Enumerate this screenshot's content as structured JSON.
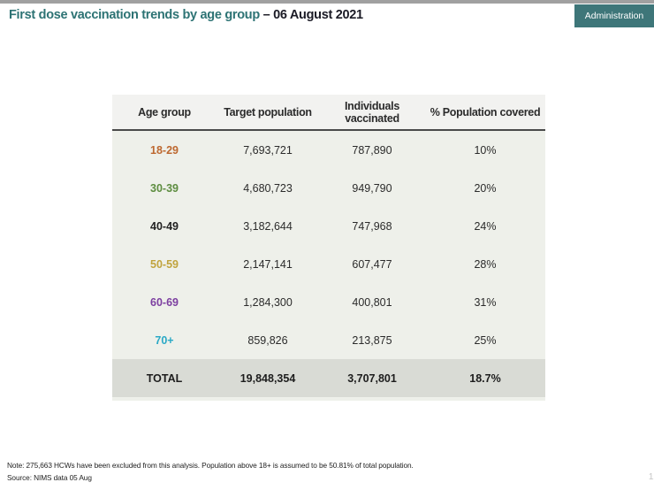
{
  "header": {
    "title_main": "First dose vaccination trends by age group",
    "title_date": " – 06 August 2021",
    "badge_label": "Administration"
  },
  "table": {
    "columns": [
      "Age group",
      "Target population",
      "Individuals vaccinated",
      "% Population covered"
    ],
    "rows": [
      {
        "age_group": "18-29",
        "color": "#bd6830",
        "target_population": "7,693,721",
        "individuals_vaccinated": "787,890",
        "pct_covered": "10%"
      },
      {
        "age_group": "30-39",
        "color": "#5d8d40",
        "target_population": "4,680,723",
        "individuals_vaccinated": "949,790",
        "pct_covered": "20%"
      },
      {
        "age_group": "40-49",
        "color": "#212121",
        "target_population": "3,182,644",
        "individuals_vaccinated": "747,968",
        "pct_covered": "24%"
      },
      {
        "age_group": "50-59",
        "color": "#c0a33d",
        "target_population": "2,147,141",
        "individuals_vaccinated": "607,477",
        "pct_covered": "28%"
      },
      {
        "age_group": "60-69",
        "color": "#7c3fa0",
        "target_population": "1,284,300",
        "individuals_vaccinated": "400,801",
        "pct_covered": "31%"
      },
      {
        "age_group": "70+",
        "color": "#2aa9c6",
        "target_population": "859,826",
        "individuals_vaccinated": "213,875",
        "pct_covered": "25%"
      }
    ],
    "total_row": {
      "label": "TOTAL",
      "target_population": "19,848,354",
      "individuals_vaccinated": "3,707,801",
      "pct_covered": "18.7%"
    }
  },
  "footer": {
    "note": "Note: 275,663 HCWs have been excluded from this analysis. Population above 18+ is assumed to be 50.81% of total population.",
    "source": "Source:  NIMS data 05 Aug",
    "page_number": "12"
  },
  "colors": {
    "accent_teal": "#2d7374",
    "badge_bg": "#3e7679",
    "title_date_color": "#1b1b26",
    "header_row_bg": "#f2f2f0",
    "body_bg": "#eef0ea",
    "total_row_bg": "#d9dbd5",
    "separator": "#4a4a4a",
    "top_strip": "#a0a0a0",
    "page_num_color": "#c4c4c4"
  },
  "chart_data": {
    "type": "table",
    "title": "First dose vaccination trends by age group – 06 August 2021",
    "columns": [
      "Age group",
      "Target population",
      "Individuals vaccinated",
      "% Population covered"
    ],
    "rows": [
      [
        "18-29",
        7693721,
        787890,
        "10%"
      ],
      [
        "30-39",
        4680723,
        949790,
        "20%"
      ],
      [
        "40-49",
        3182644,
        747968,
        "24%"
      ],
      [
        "50-59",
        2147141,
        607477,
        "28%"
      ],
      [
        "60-69",
        1284300,
        400801,
        "31%"
      ],
      [
        "70+",
        859826,
        213875,
        "25%"
      ]
    ],
    "total": [
      "TOTAL",
      19848354,
      3707801,
      "18.7%"
    ]
  }
}
